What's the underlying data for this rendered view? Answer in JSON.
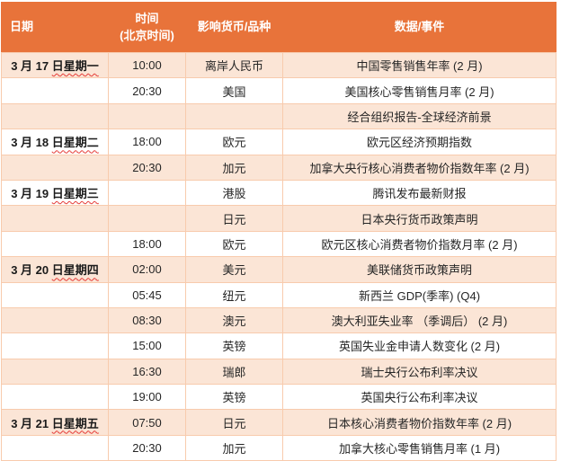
{
  "colors": {
    "header_bg": "#E8733A",
    "header_text": "#FFFFFF",
    "row_alt_bg": "#FBE5D6",
    "row_bg": "#FFFFFF",
    "border": "#F8CBAD",
    "text": "#262626",
    "squiggle": "#E53935"
  },
  "table": {
    "headers": {
      "date": "日期",
      "time_line1": "时间",
      "time_line2": "(北京时间)",
      "currency": "影响货币/品种",
      "event": "数据/事件"
    },
    "rows": [
      {
        "date": "3 月 17 ",
        "date_underlined": "日星期一",
        "time": "10:00",
        "currency": "离岸人民币",
        "event": "中国零售销售年率 (2 月)"
      },
      {
        "date": "",
        "date_underlined": "",
        "time": "20:30",
        "currency": "美国",
        "event": "美国核心零售销售月率 (2 月)"
      },
      {
        "date": "",
        "date_underlined": "",
        "time": "",
        "currency": "",
        "event": "经合组织报告-全球经济前景"
      },
      {
        "date": "3 月 18 ",
        "date_underlined": "日星期二",
        "time": "18:00",
        "currency": "欧元",
        "event": "欧元区经济预期指数"
      },
      {
        "date": "",
        "date_underlined": "",
        "time": "20:30",
        "currency": "加元",
        "event": "加拿大央行核心消费者物价指数年率 (2 月)"
      },
      {
        "date": "3 月 19 ",
        "date_underlined": "日星期三",
        "time": "",
        "currency": "港股",
        "event": "腾讯发布最新财报"
      },
      {
        "date": "",
        "date_underlined": "",
        "time": "",
        "currency": "日元",
        "event": "日本央行货币政策声明"
      },
      {
        "date": "",
        "date_underlined": "",
        "time": "18:00",
        "currency": "欧元",
        "event": "欧元区核心消费者物价指数月率 (2 月)"
      },
      {
        "date": "3 月 20 ",
        "date_underlined": "日星期四",
        "time": "02:00",
        "currency": "美元",
        "event": "美联储货币政策声明"
      },
      {
        "date": "",
        "date_underlined": "",
        "time": "05:45",
        "currency": "纽元",
        "event": "新西兰 GDP(季率) (Q4)"
      },
      {
        "date": "",
        "date_underlined": "",
        "time": "08:30",
        "currency": "澳元",
        "event": "澳大利亚失业率 （季调后） (2 月)"
      },
      {
        "date": "",
        "date_underlined": "",
        "time": "15:00",
        "currency": "英镑",
        "event": "英国失业金申请人数变化 (2 月)"
      },
      {
        "date": "",
        "date_underlined": "",
        "time": "16:30",
        "currency": "瑞郎",
        "event": "瑞士央行公布利率决议"
      },
      {
        "date": "",
        "date_underlined": "",
        "time": "19:00",
        "currency": "英镑",
        "event": "英国央行公布利率决议"
      },
      {
        "date": "3 月 21 ",
        "date_underlined": "日星期五",
        "time": "07:50",
        "currency": "日元",
        "event": "日本核心消费者物价指数年率 (2 月)"
      },
      {
        "date": "",
        "date_underlined": "",
        "time": "20:30",
        "currency": "加元",
        "event": "加拿大核心零售销售月率 (1 月)"
      }
    ]
  }
}
